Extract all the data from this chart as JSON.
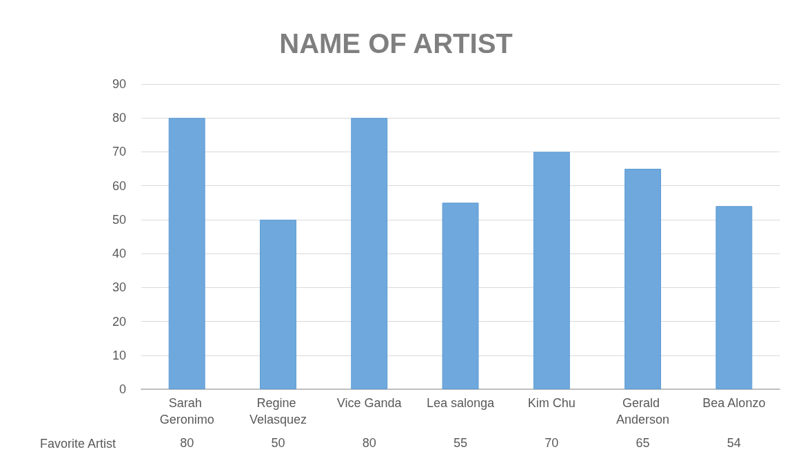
{
  "chart_data": {
    "type": "bar",
    "title": "NAME OF ARTIST",
    "categories": [
      "Sarah Geronimo",
      "Regine Velasquez",
      "Vice Ganda",
      "Lea salonga",
      "Kim Chu",
      "Gerald Anderson",
      "Bea Alonzo"
    ],
    "series": [
      {
        "name": "Favorite Artist",
        "color": "#6fa8dc",
        "values": [
          80,
          50,
          80,
          55,
          70,
          65,
          54
        ]
      }
    ],
    "ylim": [
      0,
      90
    ],
    "yticks": [
      0,
      10,
      20,
      30,
      40,
      50,
      60,
      70,
      80,
      90
    ],
    "grid": "y",
    "data_labels": true,
    "legend": false
  }
}
